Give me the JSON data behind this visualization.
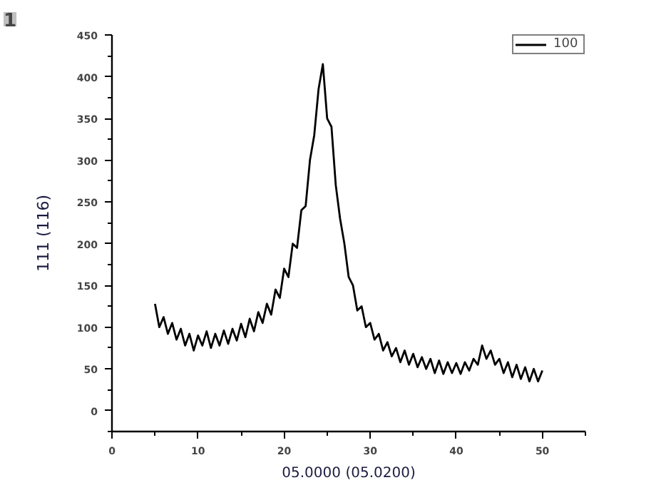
{
  "chart_data": {
    "type": "line",
    "xlabel": "05.0000 (05.0200)",
    "ylabel": "111 (116)",
    "annotations": [
      "1"
    ],
    "x": [
      5.0,
      5.5,
      6.0,
      6.5,
      7.0,
      7.5,
      8.0,
      8.5,
      9.0,
      9.5,
      10.0,
      10.5,
      11.0,
      11.5,
      12.0,
      12.5,
      13.0,
      13.5,
      14.0,
      14.5,
      15.0,
      15.5,
      16.0,
      16.5,
      17.0,
      17.5,
      18.0,
      18.5,
      19.0,
      19.5,
      20.0,
      20.5,
      21.0,
      21.5,
      22.0,
      22.5,
      23.0,
      23.5,
      24.0,
      24.5,
      25.0,
      25.5,
      26.0,
      26.5,
      27.0,
      27.5,
      28.0,
      28.5,
      29.0,
      29.5,
      30.0,
      30.5,
      31.0,
      31.5,
      32.0,
      32.5,
      33.0,
      33.5,
      34.0,
      34.5,
      35.0,
      35.5,
      36.0,
      36.5,
      37.0,
      37.5,
      38.0,
      38.5,
      39.0,
      39.5,
      40.0,
      40.5,
      41.0,
      41.5,
      42.0,
      42.5,
      43.0,
      43.5,
      44.0,
      44.5,
      45.0,
      45.5,
      46.0,
      46.5,
      47.0,
      47.5,
      48.0,
      48.5,
      49.0,
      49.5,
      50.0
    ],
    "series": [
      {
        "name": "100",
        "color": "#000000",
        "values": [
          128,
          100,
          112,
          92,
          105,
          85,
          98,
          78,
          92,
          72,
          90,
          78,
          95,
          75,
          92,
          78,
          96,
          80,
          98,
          84,
          104,
          88,
          110,
          95,
          118,
          105,
          128,
          115,
          145,
          135,
          170,
          160,
          200,
          195,
          240,
          245,
          300,
          330,
          385,
          415,
          350,
          340,
          270,
          230,
          200,
          160,
          150,
          120,
          125,
          100,
          105,
          85,
          92,
          72,
          82,
          65,
          75,
          58,
          72,
          55,
          68,
          52,
          64,
          50,
          62,
          45,
          60,
          44,
          58,
          45,
          57,
          44,
          58,
          48,
          62,
          55,
          78,
          62,
          72,
          55,
          62,
          45,
          58,
          40,
          55,
          38,
          52,
          35,
          50,
          35,
          48
        ]
      }
    ],
    "xlim": [
      0,
      55
    ],
    "xticks": [
      0,
      10,
      20,
      30,
      40,
      50
    ],
    "ylim": [
      -25,
      450
    ],
    "yticks": [
      0,
      50,
      100,
      150,
      200,
      250,
      300,
      350,
      400,
      450
    ],
    "grid": false,
    "legend": "top right",
    "marker": "none",
    "line_style": "solid"
  }
}
